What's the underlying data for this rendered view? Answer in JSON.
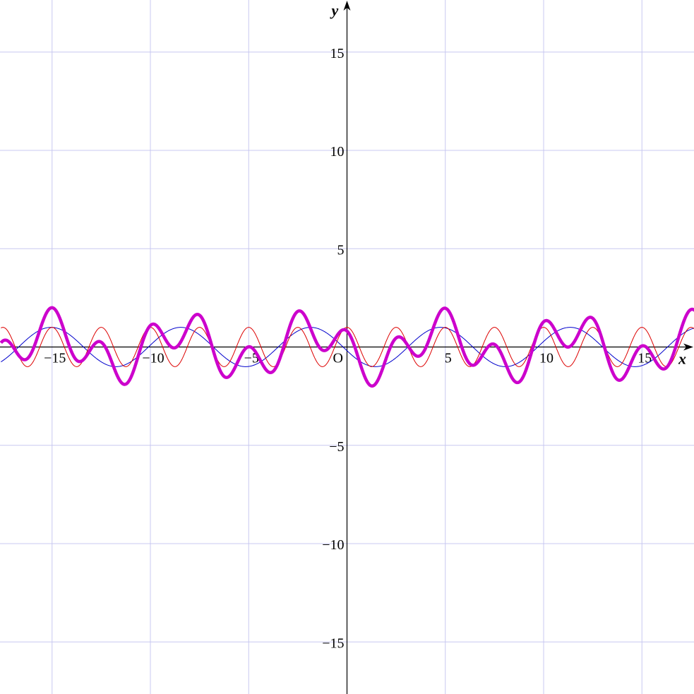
{
  "chart_data": {
    "type": "line",
    "title": "",
    "xlabel": "x",
    "ylabel": "y",
    "origin_label": "O",
    "xlim": [
      -17.6,
      17.7
    ],
    "ylim": [
      -17.6,
      17.7
    ],
    "grid": true,
    "grid_step": 5,
    "x_ticks": [
      {
        "value": -15,
        "label": "−15"
      },
      {
        "value": -10,
        "label": "−10"
      },
      {
        "value": -5,
        "label": "−5"
      },
      {
        "value": 5,
        "label": "5"
      },
      {
        "value": 10,
        "label": "10"
      },
      {
        "value": 15,
        "label": "15"
      }
    ],
    "y_ticks": [
      {
        "value": 15,
        "label": "15"
      },
      {
        "value": 10,
        "label": "10"
      },
      {
        "value": 5,
        "label": "5"
      },
      {
        "value": -5,
        "label": "−5"
      },
      {
        "value": -10,
        "label": "−10"
      },
      {
        "value": -15,
        "label": "−15"
      }
    ],
    "series": [
      {
        "color": "#0000cc",
        "stroke": "thin",
        "amplitude": 1,
        "period": 6.6,
        "phase": -3.1,
        "note_formula": "y = sin((2π/6.6)·(x − 3.1))"
      },
      {
        "color": "#dd0000",
        "stroke": "thin",
        "amplitude": 1,
        "period": 2.5,
        "phase": 0.625
      },
      {
        "color": "#cc00cc",
        "stroke": "thick",
        "sum_of": [
          0,
          1
        ]
      }
    ],
    "colors": {
      "grid": "#c8c8f0",
      "axis": "#000000",
      "background": "#ffffff"
    }
  }
}
